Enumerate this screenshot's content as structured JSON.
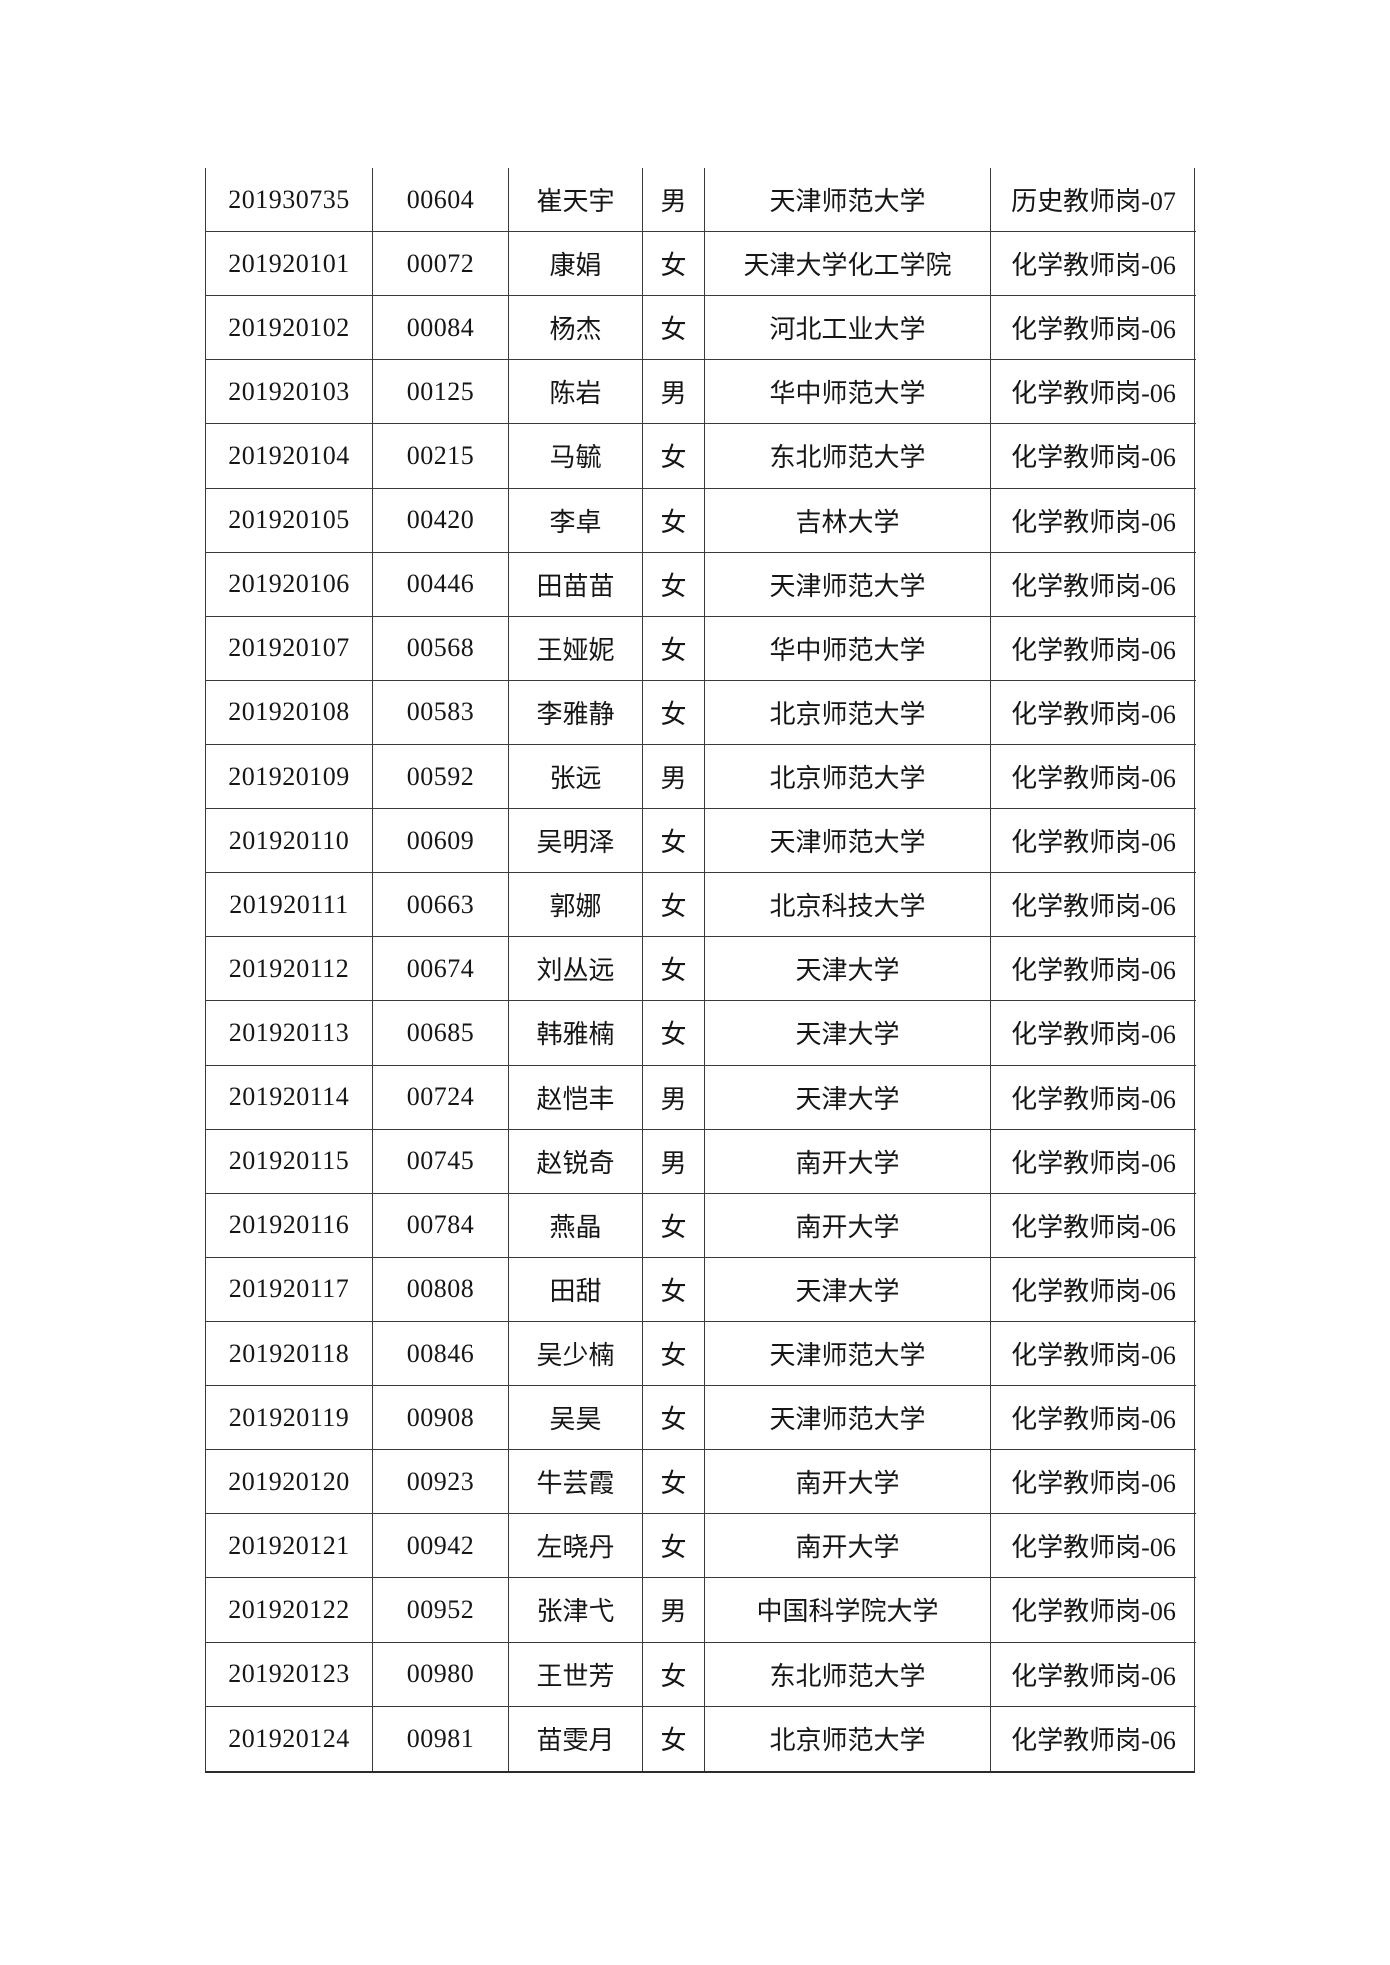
{
  "page": {
    "background_color": "#ffffff",
    "text_color": "#161616",
    "border_color": "#3a3a3a"
  },
  "table": {
    "columns": [
      "exam_id",
      "candidate_no",
      "name",
      "gender",
      "school",
      "position"
    ],
    "rows": [
      {
        "exam_id": "201930735",
        "candidate_no": "00604",
        "name": "崔天宇",
        "gender": "男",
        "school": "天津师范大学",
        "position": "历史教师岗-07"
      },
      {
        "exam_id": "201920101",
        "candidate_no": "00072",
        "name": "康娟",
        "gender": "女",
        "school": "天津大学化工学院",
        "position": "化学教师岗-06"
      },
      {
        "exam_id": "201920102",
        "candidate_no": "00084",
        "name": "杨杰",
        "gender": "女",
        "school": "河北工业大学",
        "position": "化学教师岗-06"
      },
      {
        "exam_id": "201920103",
        "candidate_no": "00125",
        "name": "陈岩",
        "gender": "男",
        "school": "华中师范大学",
        "position": "化学教师岗-06"
      },
      {
        "exam_id": "201920104",
        "candidate_no": "00215",
        "name": "马毓",
        "gender": "女",
        "school": "东北师范大学",
        "position": "化学教师岗-06"
      },
      {
        "exam_id": "201920105",
        "candidate_no": "00420",
        "name": "李卓",
        "gender": "女",
        "school": "吉林大学",
        "position": "化学教师岗-06"
      },
      {
        "exam_id": "201920106",
        "candidate_no": "00446",
        "name": "田苗苗",
        "gender": "女",
        "school": "天津师范大学",
        "position": "化学教师岗-06"
      },
      {
        "exam_id": "201920107",
        "candidate_no": "00568",
        "name": "王娅妮",
        "gender": "女",
        "school": "华中师范大学",
        "position": "化学教师岗-06"
      },
      {
        "exam_id": "201920108",
        "candidate_no": "00583",
        "name": "李雅静",
        "gender": "女",
        "school": "北京师范大学",
        "position": "化学教师岗-06"
      },
      {
        "exam_id": "201920109",
        "candidate_no": "00592",
        "name": "张远",
        "gender": "男",
        "school": "北京师范大学",
        "position": "化学教师岗-06"
      },
      {
        "exam_id": "201920110",
        "candidate_no": "00609",
        "name": "吴明泽",
        "gender": "女",
        "school": "天津师范大学",
        "position": "化学教师岗-06"
      },
      {
        "exam_id": "201920111",
        "candidate_no": "00663",
        "name": "郭娜",
        "gender": "女",
        "school": "北京科技大学",
        "position": "化学教师岗-06"
      },
      {
        "exam_id": "201920112",
        "candidate_no": "00674",
        "name": "刘丛远",
        "gender": "女",
        "school": "天津大学",
        "position": "化学教师岗-06"
      },
      {
        "exam_id": "201920113",
        "candidate_no": "00685",
        "name": "韩雅楠",
        "gender": "女",
        "school": "天津大学",
        "position": "化学教师岗-06"
      },
      {
        "exam_id": "201920114",
        "candidate_no": "00724",
        "name": "赵恺丰",
        "gender": "男",
        "school": "天津大学",
        "position": "化学教师岗-06"
      },
      {
        "exam_id": "201920115",
        "candidate_no": "00745",
        "name": "赵锐奇",
        "gender": "男",
        "school": "南开大学",
        "position": "化学教师岗-06"
      },
      {
        "exam_id": "201920116",
        "candidate_no": "00784",
        "name": "燕晶",
        "gender": "女",
        "school": "南开大学",
        "position": "化学教师岗-06"
      },
      {
        "exam_id": "201920117",
        "candidate_no": "00808",
        "name": "田甜",
        "gender": "女",
        "school": "天津大学",
        "position": "化学教师岗-06"
      },
      {
        "exam_id": "201920118",
        "candidate_no": "00846",
        "name": "吴少楠",
        "gender": "女",
        "school": "天津师范大学",
        "position": "化学教师岗-06"
      },
      {
        "exam_id": "201920119",
        "candidate_no": "00908",
        "name": "吴昊",
        "gender": "女",
        "school": "天津师范大学",
        "position": "化学教师岗-06"
      },
      {
        "exam_id": "201920120",
        "candidate_no": "00923",
        "name": "牛芸霞",
        "gender": "女",
        "school": "南开大学",
        "position": "化学教师岗-06"
      },
      {
        "exam_id": "201920121",
        "candidate_no": "00942",
        "name": "左晓丹",
        "gender": "女",
        "school": "南开大学",
        "position": "化学教师岗-06"
      },
      {
        "exam_id": "201920122",
        "candidate_no": "00952",
        "name": "张津弋",
        "gender": "男",
        "school": "中国科学院大学",
        "position": "化学教师岗-06"
      },
      {
        "exam_id": "201920123",
        "candidate_no": "00980",
        "name": "王世芳",
        "gender": "女",
        "school": "东北师范大学",
        "position": "化学教师岗-06"
      },
      {
        "exam_id": "201920124",
        "candidate_no": "00981",
        "name": "苗雯月",
        "gender": "女",
        "school": "北京师范大学",
        "position": "化学教师岗-06"
      }
    ]
  }
}
